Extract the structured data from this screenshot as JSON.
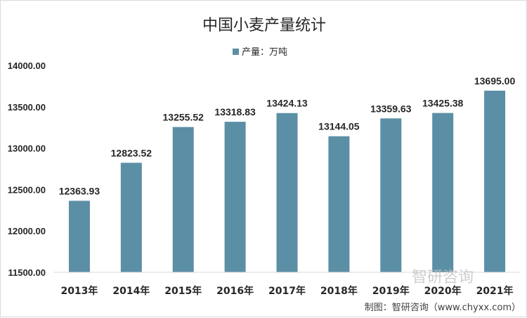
{
  "chart_data": {
    "type": "bar",
    "title": "中国小麦产量统计",
    "categories": [
      "2013年",
      "2014年",
      "2015年",
      "2016年",
      "2017年",
      "2018年",
      "2019年",
      "2020年",
      "2021年"
    ],
    "series": [
      {
        "name": "产量：万吨",
        "values": [
          12363.93,
          12823.52,
          13255.52,
          13318.83,
          13424.13,
          13144.05,
          13359.63,
          13425.38,
          13695.0
        ],
        "labels": [
          "12363.93",
          "12823.52",
          "13255.52",
          "13318.83",
          "13424.13",
          "13144.05",
          "13359.63",
          "13425.38",
          "13695.00"
        ],
        "color": "#5b8fa6"
      }
    ],
    "ylim": [
      11500,
      14000
    ],
    "yticks": [
      "11500.00",
      "12000.00",
      "12500.00",
      "13000.00",
      "13500.00",
      "14000.00"
    ],
    "ytick_values": [
      11500,
      12000,
      12500,
      13000,
      13500,
      14000
    ],
    "legend_position": "top-center",
    "grid": false
  },
  "credit": "制图：智研咨询（www.chyxx.com）",
  "watermark": "智研咨询"
}
